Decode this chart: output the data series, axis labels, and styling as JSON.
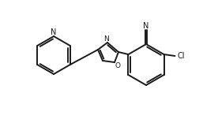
{
  "bg_color": "#ffffff",
  "line_color": "#1a1a1a",
  "line_width": 1.4,
  "figure_size": [
    2.57,
    1.7
  ],
  "dpi": 100,
  "xlim": [
    0,
    257
  ],
  "ylim": [
    0,
    170
  ]
}
